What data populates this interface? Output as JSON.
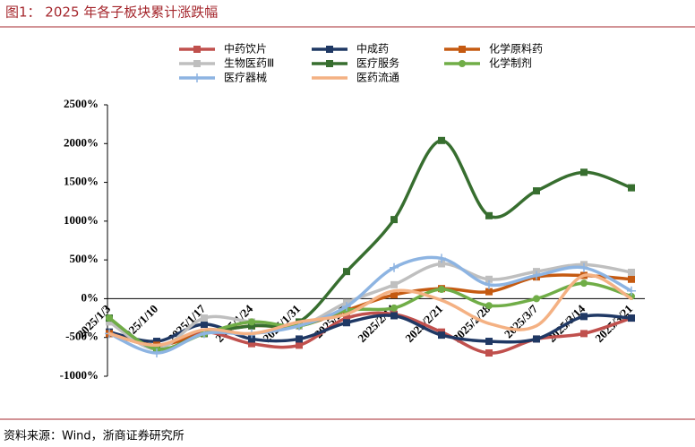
{
  "title": "图1： 2025 年各子板块累计涨跌幅",
  "source": "资料来源：Wind，浙商证券研究所",
  "chart_data": {
    "type": "line",
    "categories": [
      "2025/1/3",
      "2025/1/10",
      "2025/1/17",
      "2025/1/24",
      "2025/1/31",
      "2025/2/7",
      "2025/2/14",
      "2025/2/21",
      "2025/2/28",
      "2025/3/7",
      "2025/3/14",
      "2025/3/21"
    ],
    "ylim": [
      -1000,
      2500
    ],
    "yticks": [
      {
        "value": -1000,
        "label": "-1000%"
      },
      {
        "value": -500,
        "label": "-500%"
      },
      {
        "value": 0,
        "label": "0%"
      },
      {
        "value": 500,
        "label": "500%"
      },
      {
        "value": 1000,
        "label": "1000%"
      },
      {
        "value": 1500,
        "label": "1500%"
      },
      {
        "value": 2000,
        "label": "2000%"
      },
      {
        "value": 2500,
        "label": "2500%"
      }
    ],
    "series": [
      {
        "name": "中药饮片",
        "color": "#c0504d",
        "marker": "square",
        "values": [
          -450,
          -600,
          -430,
          -580,
          -600,
          -250,
          -200,
          -430,
          -700,
          -520,
          -450,
          -250
        ]
      },
      {
        "name": "中成药",
        "color": "#1f3864",
        "marker": "square",
        "values": [
          -430,
          -550,
          -330,
          -520,
          -520,
          -310,
          -220,
          -470,
          -550,
          -520,
          -230,
          -250
        ]
      },
      {
        "name": "化学原料药",
        "color": "#c55a11",
        "marker": "square",
        "values": [
          -450,
          -600,
          -450,
          -350,
          -350,
          -150,
          50,
          130,
          90,
          280,
          300,
          250
        ]
      },
      {
        "name": "生物医药Ⅲ",
        "color": "#bfbfbf",
        "marker": "square",
        "values": [
          -300,
          -650,
          -250,
          -300,
          -350,
          -50,
          180,
          450,
          250,
          350,
          440,
          340
        ]
      },
      {
        "name": "医疗服务",
        "color": "#376e2f",
        "marker": "square",
        "values": [
          -250,
          -650,
          -450,
          -350,
          -300,
          350,
          1020,
          2040,
          1070,
          1390,
          1630,
          1430
        ]
      },
      {
        "name": "化学制剂",
        "color": "#70ad47",
        "marker": "circle",
        "values": [
          -250,
          -650,
          -450,
          -300,
          -350,
          -150,
          -120,
          120,
          -90,
          0,
          200,
          30
        ]
      },
      {
        "name": "医疗器械",
        "color": "#8db4e2",
        "marker": "plus",
        "values": [
          -450,
          -700,
          -450,
          -450,
          -350,
          -100,
          400,
          520,
          180,
          300,
          400,
          100
        ]
      },
      {
        "name": "医药流通",
        "color": "#f4b183",
        "marker": "none",
        "values": [
          -450,
          -600,
          -400,
          -450,
          -300,
          -200,
          100,
          -20,
          -320,
          -350,
          300,
          0
        ]
      }
    ]
  }
}
